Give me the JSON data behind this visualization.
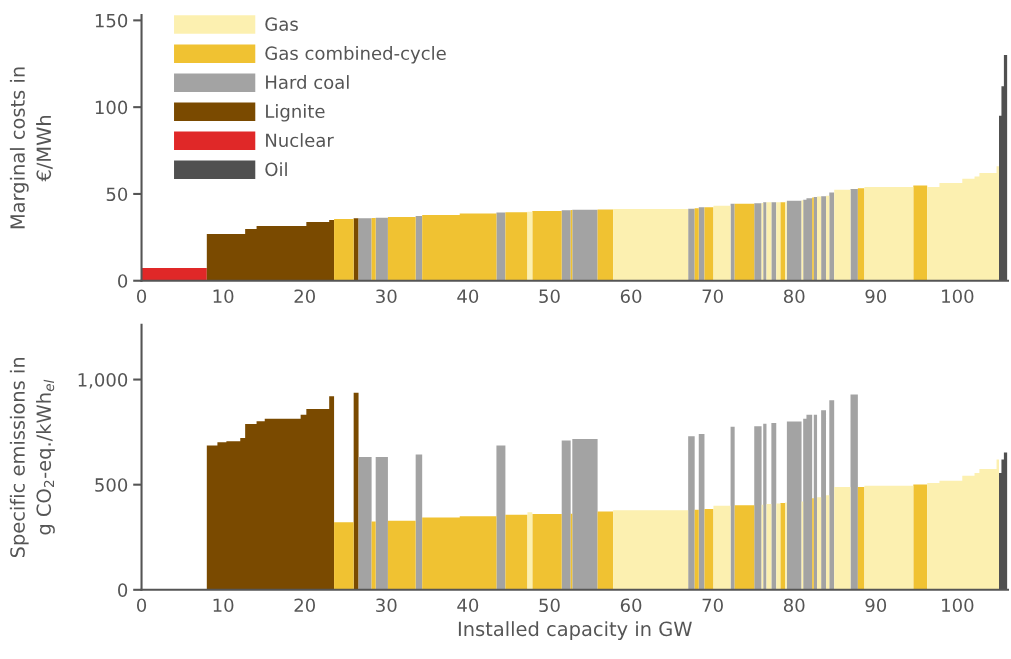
{
  "chart_data": [
    {
      "type": "area",
      "ylabel": "Marginal costs in\n€/MWh",
      "xlim": [
        0,
        106.2
      ],
      "xticks": [
        0,
        10,
        20,
        30,
        40,
        50,
        60,
        70,
        80,
        90,
        100
      ],
      "ylim": [
        0,
        153
      ],
      "yticks": [
        0,
        50,
        100,
        150
      ],
      "grid": false,
      "legend": "top left",
      "series": [
        {
          "name": "Gas",
          "color": "#fcf0b0",
          "x": [
            47.3,
            47.9,
            47.9,
            57.8,
            57.8,
            67.0,
            67.0,
            70.1,
            70.1,
            72.2,
            72.2,
            76.0,
            76.0,
            76.2,
            76.2,
            76.6,
            76.6,
            77.2,
            77.2,
            77.8,
            77.8,
            78.3,
            78.3,
            78.9,
            78.9,
            79.1,
            79.1,
            80.9,
            80.9,
            81.1,
            81.1,
            82.8,
            82.8,
            83.3,
            83.3,
            83.9,
            83.9,
            84.3,
            84.3,
            84.9,
            84.9,
            86.9,
            86.9,
            88.6,
            88.6,
            94.6,
            94.6,
            96.3,
            96.3,
            97.8,
            97.8,
            100.6,
            100.6,
            102.1,
            102.1,
            102.7,
            102.7,
            104.8,
            104.8,
            105.1
          ],
          "values": [
            39.7,
            39.7,
            0,
            0,
            41.3,
            41.3,
            0,
            0,
            43.2,
            43.2,
            0,
            0,
            44.8,
            44.8,
            0,
            0,
            45.2,
            45.2,
            0,
            0,
            45.2,
            45.2,
            0,
            0,
            45.5,
            45.5,
            0,
            0,
            46.3,
            46.3,
            0,
            0,
            48.5,
            48.5,
            0,
            0,
            49.0,
            49.0,
            0,
            0,
            52.4,
            52.4,
            0,
            0,
            54.0,
            54.0,
            0,
            0,
            54.0,
            54.0,
            56.3,
            56.3,
            58.8,
            58.8,
            60.1,
            60.1,
            62.1,
            62.1,
            66,
            66
          ]
        },
        {
          "name": "Gas combined-cycle",
          "color": "#f0c232",
          "x": [
            23.6,
            26.0,
            26.0,
            28.2,
            28.2,
            28.7,
            28.7,
            30.2,
            30.2,
            33.6,
            33.6,
            34.4,
            34.4,
            39.0,
            39.0,
            43.5,
            43.5,
            44.6,
            44.6,
            47.3,
            47.3,
            47.9,
            47.9,
            51.5,
            51.5,
            52.6,
            52.6,
            52.8,
            52.8,
            55.9,
            55.9,
            57.8,
            57.8,
            67.8,
            67.8,
            68.3,
            68.3,
            69.0,
            69.0,
            70.1,
            70.1,
            72.7,
            72.7,
            75.1,
            75.1,
            78.3,
            78.3,
            78.9,
            78.9,
            82.2,
            82.2,
            82.4,
            82.4,
            87.8,
            87.8,
            88.6,
            88.6,
            94.6,
            94.6,
            96.3
          ],
          "values": [
            35.5,
            35.5,
            0,
            0,
            36.2,
            36.2,
            0,
            0,
            36.7,
            36.7,
            0,
            0,
            37.8,
            37.8,
            38.8,
            38.8,
            0,
            0,
            39.5,
            39.5,
            0,
            0,
            40.2,
            40.2,
            0,
            0,
            40.7,
            40.7,
            0,
            0,
            41.0,
            41.0,
            0,
            0,
            41.8,
            41.8,
            0,
            0,
            42.3,
            42.3,
            0,
            0,
            44.4,
            44.4,
            0,
            0,
            45.2,
            45.2,
            0,
            0,
            48.0,
            48.0,
            0,
            0,
            53.3,
            53.3,
            0,
            0,
            54.8,
            54.8
          ]
        },
        {
          "name": "Hard coal",
          "color": "#a3a3a3",
          "x": [
            26.6,
            28.2,
            28.2,
            28.7,
            28.7,
            30.2,
            30.2,
            33.6,
            33.6,
            34.4,
            34.4,
            43.5,
            43.5,
            44.6,
            44.6,
            51.5,
            51.5,
            52.6,
            52.6,
            52.8,
            52.8,
            55.9,
            55.9,
            67.0,
            67.0,
            67.8,
            67.8,
            68.3,
            68.3,
            69.0,
            69.0,
            72.2,
            72.2,
            72.7,
            72.7,
            75.1,
            75.1,
            76.0,
            76.0,
            76.2,
            76.2,
            76.6,
            76.6,
            77.2,
            77.2,
            77.8,
            77.8,
            79.1,
            79.1,
            80.9,
            80.9,
            81.1,
            81.1,
            81.5,
            81.5,
            82.2,
            82.2,
            82.4,
            82.4,
            82.8,
            82.8,
            83.3,
            83.3,
            83.9,
            83.9,
            84.3,
            84.3,
            84.9,
            84.9,
            86.9,
            86.9,
            87.8
          ],
          "values": [
            36.0,
            36.0,
            0,
            0,
            36.3,
            36.3,
            0,
            0,
            37.3,
            37.3,
            0,
            0,
            39.3,
            39.3,
            0,
            0,
            40.6,
            40.6,
            0,
            0,
            40.9,
            40.9,
            0,
            0,
            41.5,
            41.5,
            0,
            0,
            42.3,
            42.3,
            0,
            0,
            44.4,
            44.4,
            0,
            0,
            44.6,
            44.6,
            0,
            0,
            45.2,
            45.2,
            0,
            0,
            45.2,
            45.2,
            0,
            0,
            46.1,
            46.1,
            0,
            0,
            46.7,
            46.7,
            47.5,
            47.5,
            0,
            0,
            48.3,
            48.3,
            0,
            0,
            48.6,
            48.6,
            0,
            0,
            50.9,
            50.9,
            0,
            0,
            52.8,
            52.8
          ]
        },
        {
          "name": "Lignite",
          "color": "#7a4a00",
          "x": [
            8.0,
            9.3,
            9.3,
            10.4,
            10.4,
            12.1,
            12.1,
            12.7,
            12.7,
            14.1,
            14.1,
            15.1,
            15.1,
            19.5,
            19.5,
            20.2,
            20.2,
            23.0,
            23.0,
            23.6,
            23.6,
            26.0,
            26.0,
            26.6
          ],
          "values": [
            26.9,
            26.9,
            26.9,
            26.9,
            26.9,
            26.9,
            26.9,
            26.9,
            29.8,
            29.8,
            31.5,
            31.5,
            31.5,
            31.5,
            31.5,
            31.5,
            33.8,
            33.8,
            35.0,
            35.0,
            0,
            0,
            36.0,
            36.0
          ]
        },
        {
          "name": "Nuclear",
          "color": "#e02828",
          "x": [
            0,
            8.0
          ],
          "values": [
            7.3,
            7.3
          ]
        },
        {
          "name": "Oil",
          "color": "#505050",
          "x": [
            105.1,
            105.4,
            105.4,
            105.7,
            105.7,
            106.1
          ],
          "values": [
            95,
            95,
            112,
            112,
            130,
            130
          ]
        }
      ]
    },
    {
      "type": "area",
      "xlabel": "Installed capacity in GW",
      "ylabel": "Specific emissions in\ng CO$_{2}$-eq./kWh$_{el}$",
      "xlim": [
        0,
        106.2
      ],
      "xticks": [
        0,
        10,
        20,
        30,
        40,
        50,
        60,
        70,
        80,
        90,
        100
      ],
      "ylim": [
        0,
        1260
      ],
      "yticks": [
        0,
        500,
        {
          "value": 1000,
          "label": "1,000"
        }
      ],
      "grid": false,
      "series": [
        {
          "color": "#fcf0b0",
          "x": [
            47.3,
            47.9,
            47.9,
            57.8,
            57.8,
            67.0,
            67.0,
            70.1,
            70.1,
            72.2,
            72.2,
            76.0,
            76.0,
            76.2,
            76.2,
            76.6,
            76.6,
            77.2,
            77.2,
            77.8,
            77.8,
            78.3,
            78.3,
            78.9,
            78.9,
            79.1,
            79.1,
            80.9,
            80.9,
            81.1,
            81.1,
            82.8,
            82.8,
            83.3,
            83.3,
            83.9,
            83.9,
            84.3,
            84.3,
            84.9,
            84.9,
            86.9,
            86.9,
            88.6,
            88.6,
            94.6,
            94.6,
            96.3,
            96.3,
            97.8,
            97.8,
            100.6,
            100.6,
            102.1,
            102.1,
            102.7,
            102.7,
            104.8,
            104.8,
            105.1
          ],
          "values": [
            369,
            369,
            0,
            0,
            378,
            378,
            0,
            0,
            400,
            400,
            0,
            0,
            405,
            405,
            0,
            0,
            408,
            408,
            0,
            0,
            410,
            410,
            0,
            0,
            415,
            415,
            0,
            0,
            420,
            420,
            0,
            0,
            440,
            440,
            0,
            0,
            450,
            450,
            0,
            0,
            489,
            489,
            0,
            0,
            495,
            495,
            0,
            0,
            508,
            508,
            519,
            519,
            543,
            543,
            556,
            556,
            575,
            575,
            620,
            620
          ]
        },
        {
          "color": "#f0c232",
          "x": [
            23.6,
            26.0,
            26.0,
            28.2,
            28.2,
            28.7,
            28.7,
            30.2,
            30.2,
            33.6,
            33.6,
            34.4,
            34.4,
            39.0,
            39.0,
            43.5,
            43.5,
            44.6,
            44.6,
            47.3,
            47.3,
            47.9,
            47.9,
            51.5,
            51.5,
            52.6,
            52.6,
            52.8,
            52.8,
            55.9,
            55.9,
            57.8,
            57.8,
            67.8,
            67.8,
            68.3,
            68.3,
            69.0,
            69.0,
            70.1,
            70.1,
            72.7,
            72.7,
            75.1,
            75.1,
            78.3,
            78.3,
            78.9,
            78.9,
            82.2,
            82.2,
            82.4,
            82.4,
            87.8,
            87.8,
            88.6,
            88.6,
            94.6,
            94.6,
            96.3
          ],
          "values": [
            321,
            321,
            0,
            0,
            325,
            325,
            0,
            0,
            328,
            328,
            0,
            0,
            344,
            344,
            350,
            350,
            0,
            0,
            357,
            357,
            0,
            0,
            360,
            360,
            0,
            0,
            362,
            362,
            0,
            0,
            373,
            373,
            0,
            0,
            381,
            381,
            0,
            0,
            384,
            384,
            0,
            0,
            402,
            402,
            0,
            0,
            413,
            413,
            0,
            0,
            435,
            435,
            0,
            0,
            489,
            489,
            0,
            0,
            501,
            501
          ]
        },
        {
          "color": "#a3a3a3",
          "x": [
            26.6,
            28.2,
            28.2,
            28.7,
            28.7,
            30.2,
            30.2,
            33.6,
            33.6,
            34.4,
            34.4,
            43.5,
            43.5,
            44.6,
            44.6,
            51.5,
            51.5,
            52.6,
            52.6,
            52.8,
            52.8,
            55.9,
            55.9,
            67.0,
            67.0,
            67.8,
            67.8,
            68.3,
            68.3,
            69.0,
            69.0,
            72.2,
            72.2,
            72.7,
            72.7,
            75.1,
            75.1,
            76.0,
            76.0,
            76.2,
            76.2,
            76.6,
            76.6,
            77.2,
            77.2,
            77.8,
            77.8,
            79.1,
            79.1,
            80.9,
            80.9,
            81.1,
            81.1,
            81.5,
            81.5,
            82.2,
            82.2,
            82.4,
            82.4,
            82.8,
            82.8,
            83.3,
            83.3,
            83.9,
            83.9,
            84.3,
            84.3,
            84.9,
            84.9,
            86.9,
            86.9,
            87.8
          ],
          "values": [
            632,
            632,
            0,
            0,
            632,
            632,
            0,
            0,
            644,
            644,
            0,
            0,
            686,
            686,
            0,
            0,
            710,
            710,
            0,
            0,
            717,
            717,
            0,
            0,
            730,
            730,
            0,
            0,
            741,
            741,
            0,
            0,
            775,
            775,
            0,
            0,
            778,
            778,
            0,
            0,
            790,
            790,
            0,
            0,
            793,
            793,
            0,
            0,
            800,
            800,
            0,
            0,
            813,
            813,
            833,
            833,
            0,
            0,
            833,
            833,
            0,
            0,
            854,
            854,
            0,
            0,
            902,
            902,
            0,
            0,
            929,
            929
          ]
        },
        {
          "color": "#7a4a00",
          "x": [
            8.0,
            9.3,
            9.3,
            10.4,
            10.4,
            12.1,
            12.1,
            12.7,
            12.7,
            14.1,
            14.1,
            15.1,
            15.1,
            19.5,
            19.5,
            20.2,
            20.2,
            23.0,
            23.0,
            23.6,
            23.6,
            26.0,
            26.0,
            26.6
          ],
          "values": [
            686,
            686,
            702,
            702,
            706,
            706,
            722,
            722,
            789,
            789,
            802,
            802,
            813,
            813,
            833,
            833,
            860,
            860,
            921,
            921,
            0,
            0,
            937,
            937
          ]
        },
        {
          "color": "#505050",
          "x": [
            105.1,
            105.4,
            105.4,
            105.7,
            105.7,
            106.1
          ],
          "values": [
            556,
            556,
            620,
            620,
            653,
            653
          ]
        }
      ]
    }
  ]
}
